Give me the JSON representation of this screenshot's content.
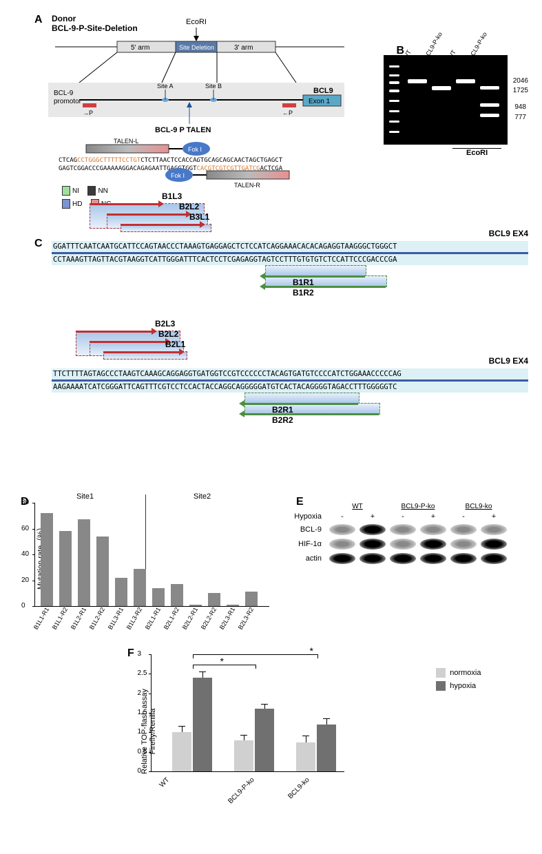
{
  "panelA": {
    "label": "A",
    "donor_title": "Donor",
    "donor_subtitle": "BCL-9-P-Site-Deletion",
    "ecori_label": "EcoRI",
    "arm5_label": "5' arm",
    "site_deletion_label": "Site Deletion",
    "arm3_label": "3' arm",
    "promoter_label": "BCL-9\npromotor",
    "siteA_label": "Site A",
    "siteB_label": "Site B",
    "bcl9_label": "BCL9",
    "exon1_label": "Exon 1",
    "p_left": "→P",
    "p_right": "←P",
    "talen_label": "BCL-9  P  TALEN",
    "talen_l_label": "TALEN-L",
    "talen_r_label": "TALEN-R",
    "fok1_label": "Fok I",
    "seq_top_pre": "CTCAG",
    "seq_top_hl1": "CCTGGGCTTTTTCCTGT",
    "seq_top_mid": "CTCTTAACTCCACCA",
    "seq_top_italic": "G",
    "seq_top_post": "TGCAGCAGCAACTAGCTGAGCT",
    "seq_bot_pre": "GAGTCGGACCCGAAAAAGGACAGAGAATTGAGGTGGT",
    "seq_bot_hl2": "CACGTCGTCGTTGATCG",
    "seq_bot_post": "ACTCGA",
    "rvd": {
      "ni": "NI",
      "nn": "NN",
      "hd": "HD",
      "ng": "NG",
      "ni_color": "#9de09d",
      "nn_color": "#3a3a3a",
      "hd_color": "#7a95d4",
      "ng_color": "#e89090"
    }
  },
  "panelB": {
    "label": "B",
    "lanes": [
      "WT",
      "BCL9-P-ko",
      "WT",
      "BCL9-P-ko"
    ],
    "sizes": [
      "2046",
      "1725",
      "948",
      "777"
    ],
    "ecori_label": "EcoRI"
  },
  "panelC": {
    "label": "C",
    "block1": {
      "left_arms": [
        "B1L3",
        "B2L2",
        "B3L1"
      ],
      "right_arms": [
        "B1R1",
        "B1R2"
      ],
      "ex_label": "BCL9  EX4",
      "seq_top": "GGATTTCAATCAATGCATTCCAGTAACCCTAAAGTGAGGAGCTCTCCATCAGGAAACACACAGAGGTAAGGGCTGGGCT",
      "seq_bot": "CCTAAAGTTAGTTACGTAAGGTCATTGGGATTTCACTCCTCGAGAGGTAGTCCTTTGTGTGTCTCCATTCCCGACCCGA"
    },
    "block2": {
      "left_arms": [
        "B2L3",
        "B2L2",
        "B2L1"
      ],
      "right_arms": [
        "B2R1",
        "B2R2"
      ],
      "ex_label": "BCL9  EX4",
      "seq_top": "TTCTTTTAGTAGCCCTAAGTCAAAGCAGGAGGTGATGGTCCGTCCCCCCTACAGTGATGTCCCCATCTGGAAACCCCCAG",
      "seq_bot": "AAGAAAATCATCGGGATTCAGTTTCGTCCTCCACTACCAGGCAGGGGGATGTCACTACAGGGGTAGACCTTTGGGGGTC"
    }
  },
  "panelD": {
    "label": "D",
    "ylabel": "Mutation rate（%）",
    "ymax": 80,
    "ytick_step": 20,
    "site1_label": "Site1",
    "site2_label": "Site2",
    "bar_color": "#888888",
    "categories": [
      "B1L1-R1",
      "B1L1-R2",
      "B1L2-R1",
      "B1L2-R2",
      "B1L3-R1",
      "B1L3-R2",
      "B2L1-R1",
      "B2L1-R2",
      "B2L2-R1",
      "B2L2-R2",
      "B2L3-R1",
      "B2L3-R2"
    ],
    "values": [
      72,
      58,
      67,
      54,
      22,
      29,
      14,
      17,
      1,
      10,
      1,
      11
    ]
  },
  "panelE": {
    "label": "E",
    "conditions": [
      "WT",
      "BCL9-P-ko",
      "BCL9-ko"
    ],
    "hypoxia_label": "Hypoxia",
    "hypoxia_states": [
      "-",
      "+",
      "-",
      "+",
      "-",
      "+"
    ],
    "rows": [
      "BCL-9",
      "HIF-1α",
      "actin"
    ],
    "intensities": {
      "bcl9": [
        "weak",
        "strong",
        "weak",
        "weak",
        "weak",
        "weak"
      ],
      "hif1a": [
        "weak",
        "strong",
        "weak",
        "strong",
        "weak",
        "strong"
      ],
      "actin": [
        "strong",
        "strong",
        "strong",
        "strong",
        "strong",
        "strong"
      ]
    }
  },
  "panelF": {
    "label": "F",
    "ylabel": "Relative TOP-flash assay\nFirefly/Renilla",
    "ymax": 3,
    "ytick_step": 0.5,
    "categories": [
      "WT",
      "BCL9-P-ko",
      "BCL9-ko"
    ],
    "series": {
      "normoxia": {
        "label": "normoxia",
        "color": "#d0d0d0",
        "values": [
          1.0,
          0.8,
          0.75
        ],
        "errors": [
          0.15,
          0.12,
          0.15
        ]
      },
      "hypoxia": {
        "label": "hypoxia",
        "color": "#707070",
        "values": [
          2.4,
          1.6,
          1.2
        ],
        "errors": [
          0.15,
          0.12,
          0.15
        ]
      }
    },
    "significance_marker": "*"
  }
}
